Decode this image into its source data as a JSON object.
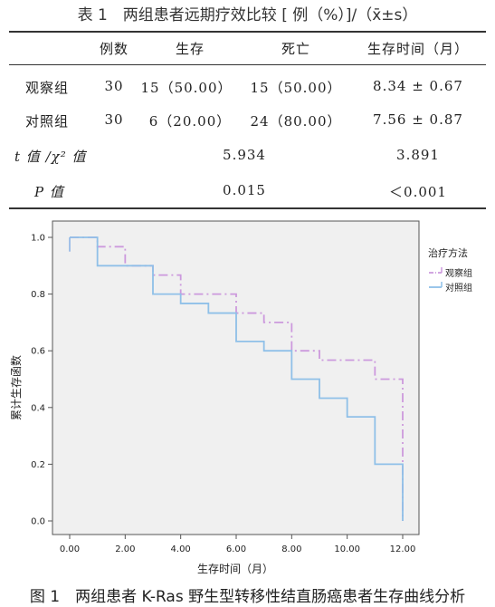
{
  "table": {
    "caption": "表 1　两组患者远期疗效比较 [ 例（%）]/（x̄±s）",
    "headers": [
      "",
      "例数",
      "生存",
      "死亡",
      "生存时间（月）"
    ],
    "rows": [
      {
        "label": "观察组",
        "n": "30",
        "survive": "15（50.00）",
        "death": "15（50.00）",
        "time": "8.34 ± 0.67"
      },
      {
        "label": "对照组",
        "n": "30",
        "survive": "6（20.00）",
        "death": "24（80.00）",
        "time": "7.56 ± 0.87"
      }
    ],
    "stats": [
      {
        "label": "t 值 /χ² 值",
        "chi": "5.934",
        "t": "3.891"
      },
      {
        "label": "P 值",
        "chi": "0.015",
        "t": "＜0.001"
      }
    ]
  },
  "chart_data": {
    "type": "line",
    "step": true,
    "xlabel": "生存时间（月）",
    "ylabel": "累计生存函数",
    "xlim": [
      0,
      12
    ],
    "ylim": [
      0,
      1
    ],
    "xticks": [
      "0.00",
      "2.00",
      "4.00",
      "6.00",
      "8.00",
      "10.00",
      "12.00"
    ],
    "yticks": [
      "0.0",
      "0.2",
      "0.4",
      "0.6",
      "0.8",
      "1.0"
    ],
    "legend_title": "治疗方法",
    "legend_position": "right",
    "series": [
      {
        "name": "观察组",
        "color": "#cc99dd",
        "dash": "dash-dot",
        "points": [
          [
            0,
            1.0
          ],
          [
            1,
            0.967
          ],
          [
            2,
            0.9
          ],
          [
            3,
            0.867
          ],
          [
            4,
            0.8
          ],
          [
            6,
            0.733
          ],
          [
            7,
            0.7
          ],
          [
            8,
            0.6
          ],
          [
            9,
            0.567
          ],
          [
            11,
            0.5
          ],
          [
            12,
            0.5
          ]
        ],
        "drop_to": 0.0
      },
      {
        "name": "对照组",
        "color": "#8fc0e8",
        "dash": "solid",
        "points": [
          [
            0,
            1.0
          ],
          [
            1,
            0.9
          ],
          [
            3,
            0.8
          ],
          [
            4,
            0.767
          ],
          [
            5,
            0.733
          ],
          [
            6,
            0.633
          ],
          [
            7,
            0.6
          ],
          [
            8,
            0.5
          ],
          [
            9,
            0.433
          ],
          [
            10,
            0.367
          ],
          [
            11,
            0.2
          ],
          [
            12,
            0.2
          ]
        ],
        "drop_to": 0.0
      }
    ]
  },
  "figure_caption": "图 1　两组患者 K-Ras 野生型转移性结直肠癌患者生存曲线分析"
}
